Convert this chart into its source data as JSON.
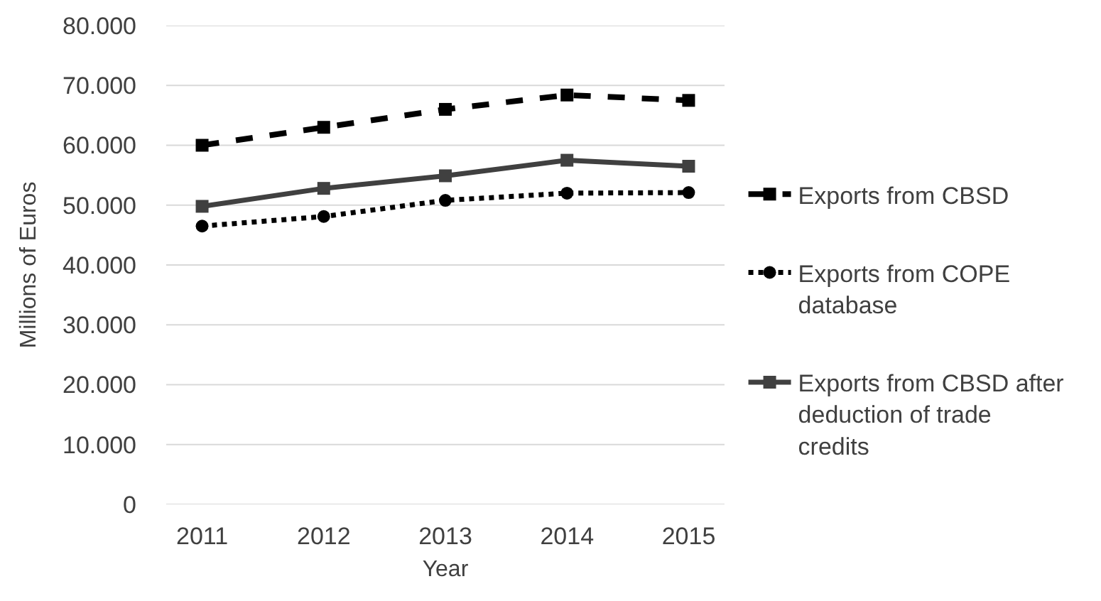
{
  "chart_data": {
    "type": "line",
    "xlabel": "Year",
    "ylabel": "Millions of Euros",
    "categories": [
      "2011",
      "2012",
      "2013",
      "2014",
      "2015"
    ],
    "series": [
      {
        "name": "Exports from CBSD",
        "color": "#000000",
        "line_style": "dashed",
        "marker": "square",
        "values": [
          60000,
          63000,
          66000,
          68400,
          67500
        ]
      },
      {
        "name": "Exports from COPE database",
        "color": "#000000",
        "line_style": "dotted",
        "marker": "circle",
        "values": [
          46500,
          48100,
          50800,
          52000,
          52100
        ]
      },
      {
        "name": "Exports from CBSD after deduction of trade credits",
        "color": "#404040",
        "line_style": "solid",
        "marker": "square",
        "values": [
          49800,
          52800,
          54900,
          57500,
          56500
        ]
      }
    ],
    "ylim": [
      0,
      80000
    ],
    "yticks": [
      0,
      {
        "value": 10000,
        "label": "10.000"
      },
      {
        "value": 20000,
        "label": "20.000"
      },
      {
        "value": 30000,
        "label": "30.000"
      },
      {
        "value": 40000,
        "label": "40.000"
      },
      {
        "value": 50000,
        "label": "50.000"
      },
      {
        "value": 60000,
        "label": "60.000"
      },
      {
        "value": 70000,
        "label": "70.000"
      },
      {
        "value": 80000,
        "label": "80.000"
      }
    ],
    "grid": "y",
    "legend": "right"
  }
}
